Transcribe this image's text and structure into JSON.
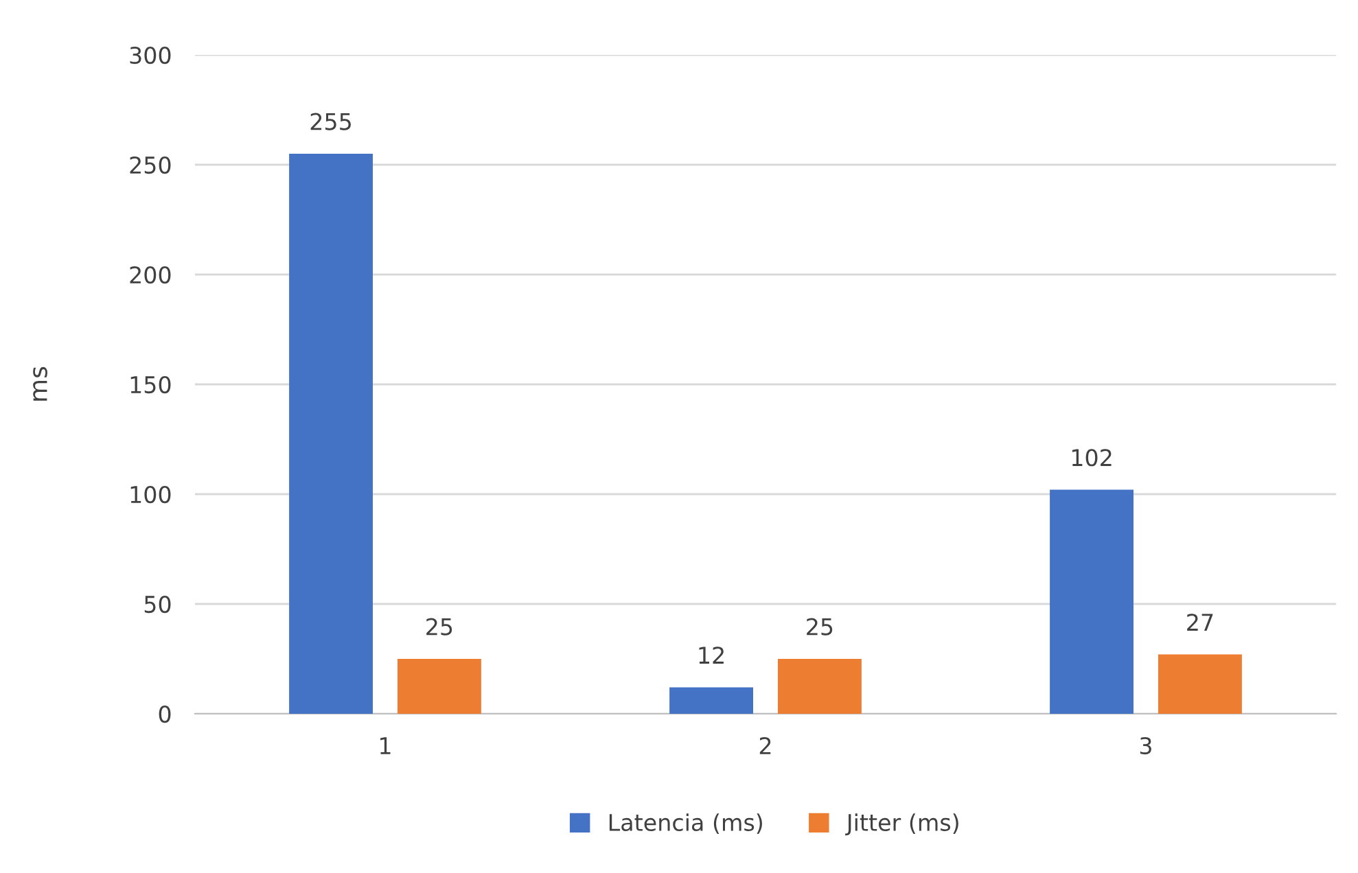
{
  "chart_data": {
    "type": "bar",
    "ylabel": "ms",
    "categories": [
      "1",
      "2",
      "3"
    ],
    "series": [
      {
        "name": "Latencia (ms)",
        "color": "#4472c4",
        "values": [
          255,
          12,
          102
        ]
      },
      {
        "name": "Jitter (ms)",
        "color": "#ed7d31",
        "values": [
          25,
          25,
          27
        ]
      }
    ],
    "ylim": [
      0,
      300
    ],
    "yticks": [
      0,
      50,
      100,
      150,
      200,
      250,
      300
    ],
    "grid": "y",
    "legend": "bottom",
    "data_labels": true
  }
}
